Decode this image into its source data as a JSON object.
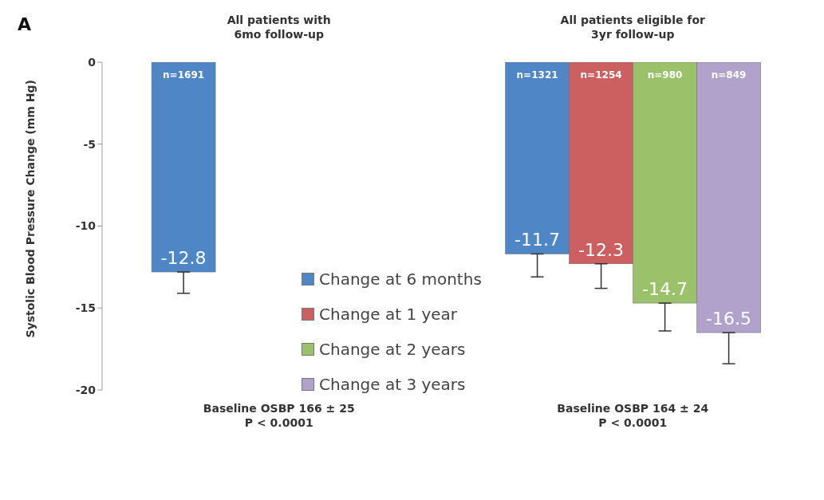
{
  "chart_data": {
    "type": "bar",
    "title": "A",
    "ylabel": "Systolic Blood Pressure Change (mm Hg)",
    "categories": [
      "Baseline OSBP 166 ± 25\nP < 0.0001",
      "Baseline OSBP 164 ± 24\nP < 0.0001"
    ],
    "series": [
      {
        "name": "Change at 6 months",
        "color": "#4f86c6",
        "values": [
          -12.8,
          -11.7
        ],
        "errors": [
          [
            -14.1,
            -12.8
          ],
          [
            -13.1,
            -11.7
          ]
        ]
      },
      {
        "name": "Change at 1 year",
        "color": "#cc5f5f",
        "values": [
          null,
          -12.3
        ],
        "errors": [
          null,
          [
            -13.8,
            -12.3
          ]
        ]
      },
      {
        "name": "Change at 2 years",
        "color": "#9bc16a",
        "values": [
          null,
          -14.7
        ],
        "errors": [
          null,
          [
            -16.4,
            -14.7
          ]
        ]
      },
      {
        "name": "Change at 3 years",
        "color": "#b1a2cc",
        "values": [
          null,
          -16.5
        ],
        "errors": [
          null,
          [
            -18.4,
            -16.5
          ]
        ]
      }
    ],
    "ylim": [
      -20,
      0
    ],
    "yticks": [
      0,
      -5,
      -10,
      -15,
      -20
    ],
    "grid": false,
    "legend": "bottom",
    "data_labels": true,
    "annotations": [
      "All patients with\n6mo follow-up",
      "All patients eligible for\n3yr follow-up",
      "n=1691",
      "n=1321",
      "n=1254",
      "n=980",
      "n=849"
    ]
  }
}
